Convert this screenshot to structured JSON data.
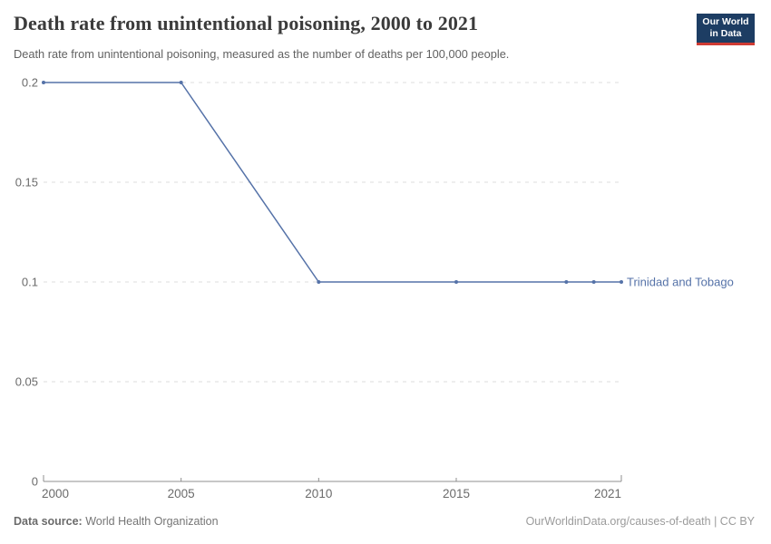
{
  "header": {
    "title": "Death rate from unintentional poisoning, 2000 to 2021",
    "subtitle": "Death rate from unintentional poisoning, measured as the number of deaths per 100,000 people."
  },
  "logo": {
    "line1": "Our World",
    "line2": "in Data",
    "bg_color": "#1d3d63",
    "bar_color": "#cf3b33"
  },
  "chart_data": {
    "type": "line",
    "title": "Death rate from unintentional poisoning, 2000 to 2021",
    "xlabel": "",
    "ylabel": "Deaths per 100,000 people",
    "xlim": [
      2000,
      2021
    ],
    "ylim": [
      0,
      0.2
    ],
    "x_ticks": [
      2000,
      2005,
      2010,
      2015,
      2021
    ],
    "y_ticks": [
      0,
      0.05,
      0.1,
      0.15,
      0.2
    ],
    "grid": "horizontal-dashed",
    "legend_position": "end-of-line-label",
    "series": [
      {
        "name": "Trinidad and Tobago",
        "color": "#5572a8",
        "points": [
          {
            "x": 2000,
            "y": 0.2
          },
          {
            "x": 2005,
            "y": 0.2
          },
          {
            "x": 2010,
            "y": 0.1
          },
          {
            "x": 2015,
            "y": 0.1
          },
          {
            "x": 2019,
            "y": 0.1
          },
          {
            "x": 2020,
            "y": 0.1
          },
          {
            "x": 2021,
            "y": 0.1
          }
        ]
      }
    ]
  },
  "footer": {
    "source_label": "Data source:",
    "source_value": " World Health Organization",
    "credit": "OurWorldinData.org/causes-of-death | CC BY"
  },
  "colors": {
    "line": "#5572a8",
    "grid": "#dedede",
    "axis": "#8f8f8f",
    "tick_text": "#6b6b6b"
  }
}
